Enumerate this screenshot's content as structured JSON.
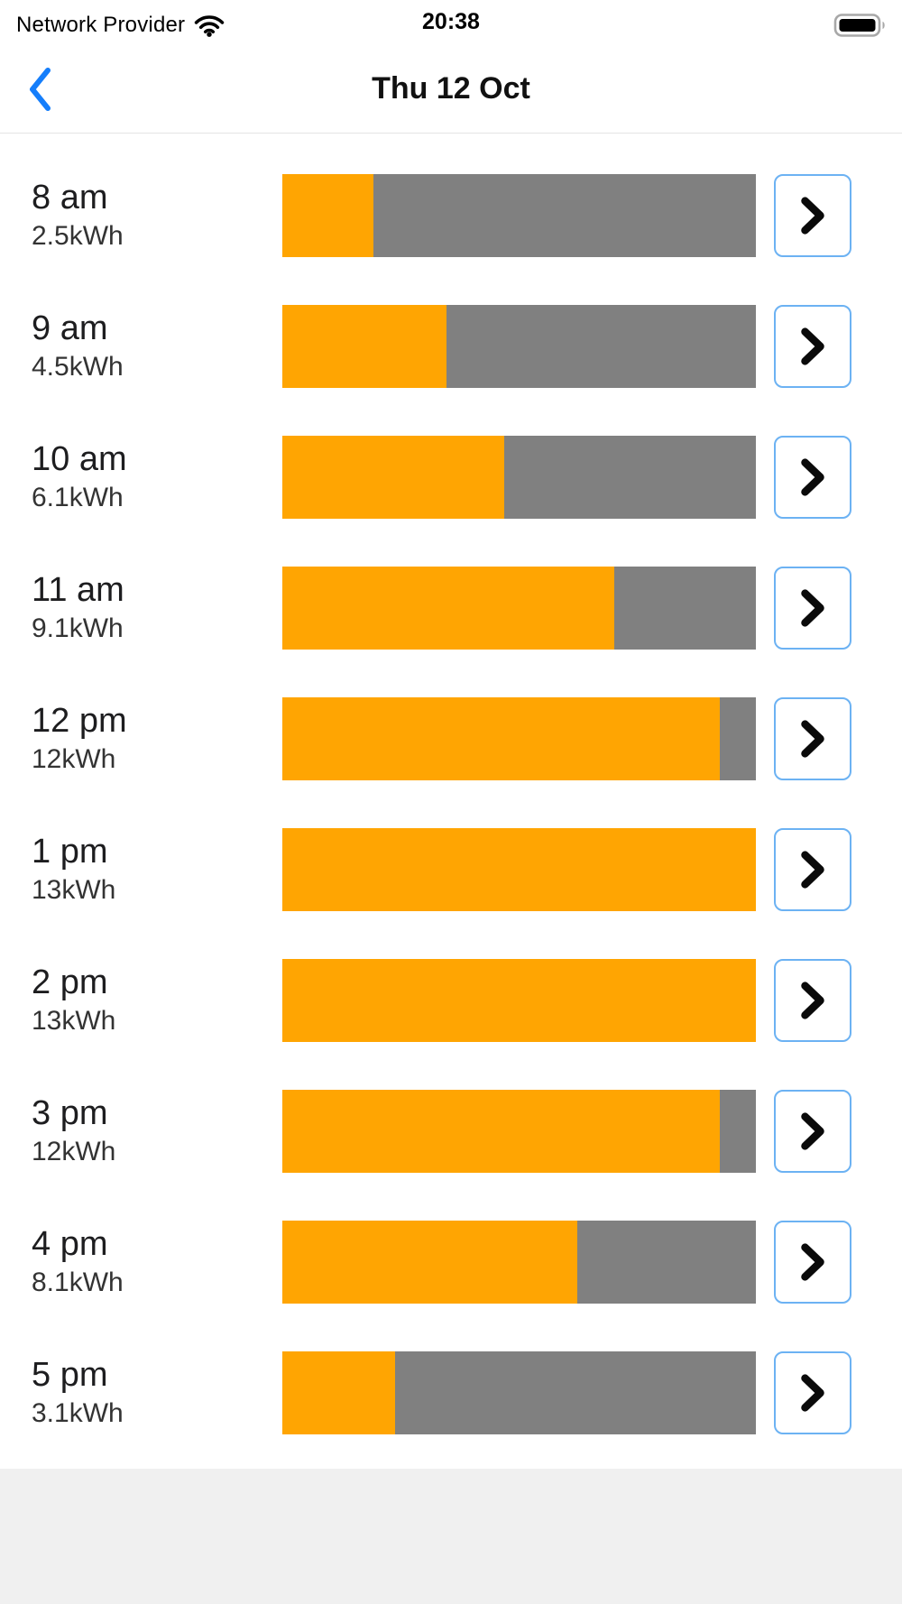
{
  "status_bar": {
    "carrier": "Network Provider",
    "time": "20:38"
  },
  "nav": {
    "title": "Thu 12 Oct"
  },
  "colors": {
    "accent_blue": "#157EFB",
    "bar_orange": "#FFA502",
    "bar_gray": "#808080",
    "button_border": "#6CB2F3",
    "footer_gray": "#F0F0F0"
  },
  "bars": {
    "max_kwh": 13,
    "rows": [
      {
        "time": "8 am",
        "value_label": "2.5kWh",
        "kwh": 2.5
      },
      {
        "time": "9 am",
        "value_label": "4.5kWh",
        "kwh": 4.5
      },
      {
        "time": "10 am",
        "value_label": "6.1kWh",
        "kwh": 6.1
      },
      {
        "time": "11 am",
        "value_label": "9.1kWh",
        "kwh": 9.1
      },
      {
        "time": "12 pm",
        "value_label": "12kWh",
        "kwh": 12
      },
      {
        "time": "1 pm",
        "value_label": "13kWh",
        "kwh": 13
      },
      {
        "time": "2 pm",
        "value_label": "13kWh",
        "kwh": 13
      },
      {
        "time": "3 pm",
        "value_label": "12kWh",
        "kwh": 12
      },
      {
        "time": "4 pm",
        "value_label": "8.1kWh",
        "kwh": 8.1
      },
      {
        "time": "5 pm",
        "value_label": "3.1kWh",
        "kwh": 3.1
      }
    ]
  },
  "chart_data": {
    "type": "bar",
    "orientation": "horizontal",
    "title": "Thu 12 Oct",
    "unit": "kWh",
    "categories": [
      "8 am",
      "9 am",
      "10 am",
      "11 am",
      "12 pm",
      "1 pm",
      "2 pm",
      "3 pm",
      "4 pm",
      "5 pm"
    ],
    "values": [
      2.5,
      4.5,
      6.1,
      9.1,
      12,
      13,
      13,
      12,
      8.1,
      3.1
    ],
    "value_labels": [
      "2.5kWh",
      "4.5kWh",
      "6.1kWh",
      "9.1kWh",
      "12kWh",
      "13kWh",
      "13kWh",
      "12kWh",
      "8.1kWh",
      "3.1kWh"
    ],
    "xlim": [
      0,
      13
    ],
    "bar_fill_color": "#FFA502",
    "bar_remainder_color": "#808080",
    "grid": false,
    "legend": false
  }
}
